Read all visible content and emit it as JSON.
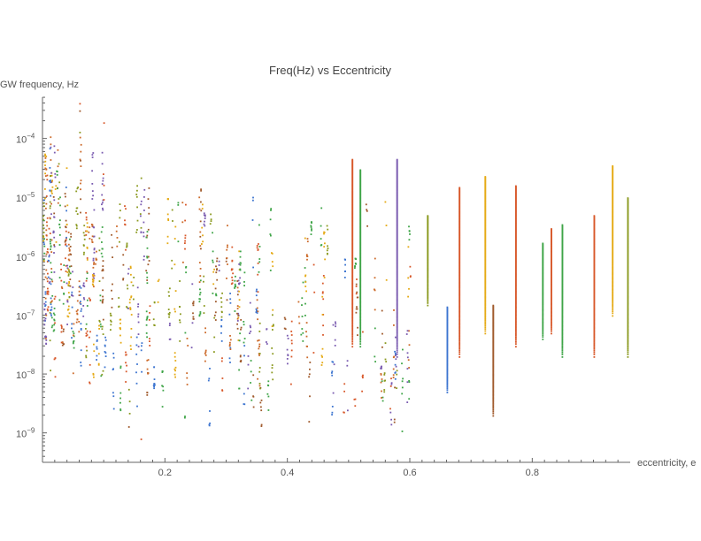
{
  "chart_data": {
    "type": "scatter",
    "title": "Freq(Hz) vs Eccentricity",
    "xlabel": "eccentricity, e",
    "ylabel": "GW frequency, Hz",
    "xlim": [
      0,
      0.96
    ],
    "ylim_log10": [
      -9.5,
      -3.3
    ],
    "y_scale": "log",
    "grid": false,
    "x_ticks": [
      {
        "value": 0.2,
        "label": "0.2"
      },
      {
        "value": 0.4,
        "label": "0.4"
      },
      {
        "value": 0.6,
        "label": "0.6"
      },
      {
        "value": 0.8,
        "label": "0.8"
      }
    ],
    "y_ticks": [
      {
        "exp": -9,
        "base": "10",
        "sup": "−9"
      },
      {
        "exp": -8,
        "base": "10",
        "sup": "−8"
      },
      {
        "exp": -7,
        "base": "10",
        "sup": "−7"
      },
      {
        "exp": -6,
        "base": "10",
        "sup": "−6"
      },
      {
        "exp": -5,
        "base": "10",
        "sup": "−5"
      },
      {
        "exp": -4,
        "base": "10",
        "sup": "−4"
      }
    ],
    "palette": [
      "#d8592b",
      "#e5aa15",
      "#3d75d0",
      "#8b9a20",
      "#3fa548",
      "#7a5bb0",
      "#a05a2c",
      "#cc6a2a"
    ],
    "columns": [
      {
        "e": 0.505,
        "ymin": 3e-08,
        "ymax": 4.5e-05,
        "color": "#d8592b"
      },
      {
        "e": 0.518,
        "ymin": 3e-08,
        "ymax": 3e-05,
        "color": "#3fa548"
      },
      {
        "e": 0.578,
        "ymin": 2e-08,
        "ymax": 4.5e-05,
        "color": "#7a5bb0"
      },
      {
        "e": 0.628,
        "ymin": 1.5e-07,
        "ymax": 5e-06,
        "color": "#8b9a20"
      },
      {
        "e": 0.66,
        "ymin": 5e-09,
        "ymax": 1.4e-07,
        "color": "#3d75d0"
      },
      {
        "e": 0.68,
        "ymin": 2e-08,
        "ymax": 1.5e-05,
        "color": "#d8592b"
      },
      {
        "e": 0.722,
        "ymin": 5e-08,
        "ymax": 2.3e-05,
        "color": "#e5aa15"
      },
      {
        "e": 0.735,
        "ymin": 2e-09,
        "ymax": 1.5e-07,
        "color": "#a05a2c"
      },
      {
        "e": 0.772,
        "ymin": 3e-08,
        "ymax": 1.6e-05,
        "color": "#d8592b"
      },
      {
        "e": 0.816,
        "ymin": 4e-08,
        "ymax": 1.7e-06,
        "color": "#3fa548"
      },
      {
        "e": 0.83,
        "ymin": 5e-08,
        "ymax": 3e-06,
        "color": "#d8592b"
      },
      {
        "e": 0.848,
        "ymin": 2e-08,
        "ymax": 3.5e-06,
        "color": "#3fa548"
      },
      {
        "e": 0.9,
        "ymin": 2e-08,
        "ymax": 5e-06,
        "color": "#d8592b"
      },
      {
        "e": 0.93,
        "ymin": 1e-07,
        "ymax": 3.5e-05,
        "color": "#e5aa15"
      },
      {
        "e": 0.955,
        "ymin": 2e-08,
        "ymax": 1e-05,
        "color": "#8b9a20"
      }
    ],
    "outliers": [
      {
        "e": 0.06,
        "y": 0.0004,
        "color": "#d8592b"
      },
      {
        "e": 0.06,
        "y": 0.0003,
        "color": "#a05a2c"
      },
      {
        "e": 0.06,
        "y": 0.00013,
        "color": "#8b9a20"
      },
      {
        "e": 0.16,
        "y": 8e-10,
        "color": "#d8592b"
      },
      {
        "e": 0.14,
        "y": 1.3e-09,
        "color": "#a05a2c"
      }
    ]
  }
}
